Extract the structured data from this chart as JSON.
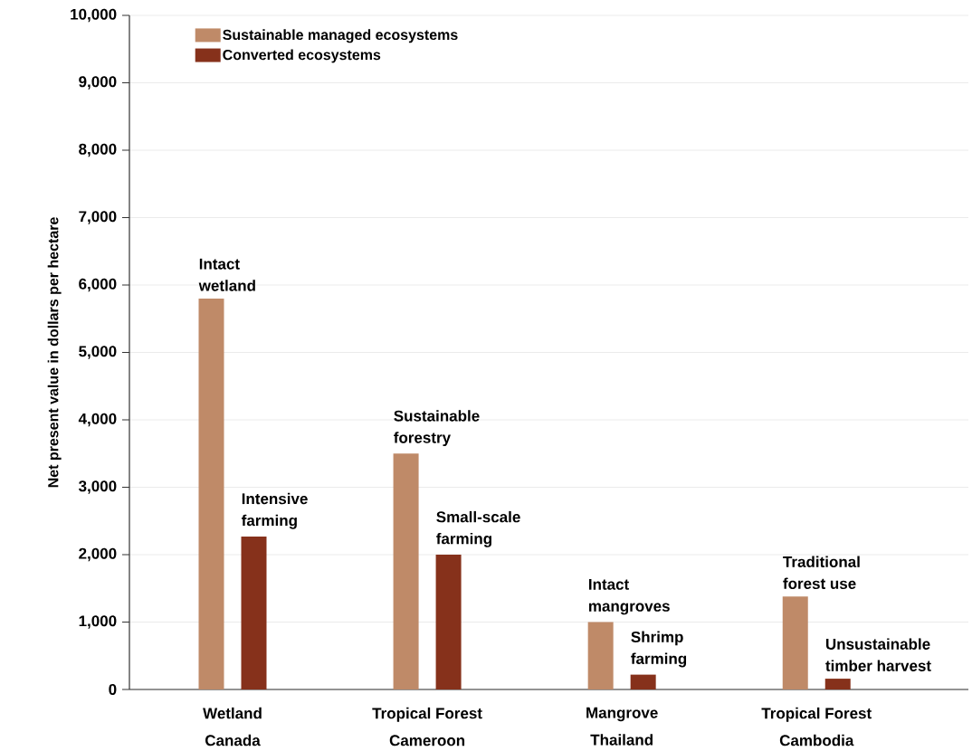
{
  "chart_data": {
    "type": "bar",
    "categories": [
      "Wetland Canada",
      "Tropical Forest Cameroon",
      "Mangrove Thailand",
      "Tropical Forest Cambodia"
    ],
    "series": [
      {
        "name": "Sustainable managed ecosystems",
        "color": "#bf8a68",
        "values": [
          5800,
          3500,
          1000,
          1380
        ]
      },
      {
        "name": "Converted ecosystems",
        "color": "#86311b",
        "values": [
          2270,
          2000,
          220,
          160
        ]
      }
    ],
    "ylabel": "Net present value in dollars per hectare",
    "ylim": [
      0,
      10000
    ],
    "yticks": [
      0,
      {
        "value": 1000,
        "label": "1,000"
      },
      {
        "value": 2000,
        "label": "2,000"
      },
      {
        "value": 3000,
        "label": "3,000"
      },
      {
        "value": 4000,
        "label": "4,000"
      },
      {
        "value": 5000,
        "label": "5,000"
      },
      {
        "value": 6000,
        "label": "6,000"
      },
      {
        "value": 7000,
        "label": "7,000"
      },
      {
        "value": 8000,
        "label": "8,000"
      },
      {
        "value": 9000,
        "label": "9,000"
      },
      {
        "value": 10000,
        "label": "10,000"
      }
    ],
    "grid": "y",
    "legend": "top left",
    "annotations": [
      "Intact wetland",
      "Intensive farming",
      "Sustainable forestry",
      "Small-scale farming",
      "Intact mangroves",
      "Shrimp farming",
      "Traditional forest use",
      "Unsustainable timber harvest"
    ]
  }
}
